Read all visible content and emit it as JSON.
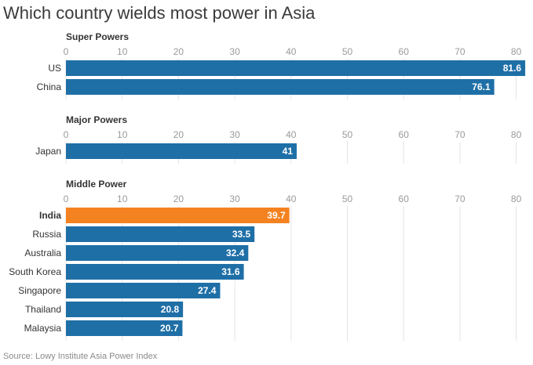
{
  "title": "Which country wields most power in Asia",
  "source": "Source: Lowy Institute Asia Power Index",
  "colors": {
    "bar": "#1f6fa7",
    "highlight": "#f58220",
    "grid": "#e4e4e4",
    "tick": "#9a9a9a",
    "text": "#333333"
  },
  "chart_data": {
    "type": "bar",
    "orientation": "horizontal",
    "xlim": [
      0,
      82
    ],
    "ticks": [
      0,
      10,
      20,
      30,
      40,
      50,
      60,
      70,
      80
    ],
    "grid": true,
    "groups": [
      {
        "label": "Super Powers",
        "categories": [
          "US",
          "China"
        ],
        "values": [
          81.6,
          76.1
        ],
        "value_labels": [
          "81.6",
          "76.1"
        ],
        "highlight": []
      },
      {
        "label": "Major Powers",
        "categories": [
          "Japan"
        ],
        "values": [
          41
        ],
        "value_labels": [
          "41"
        ],
        "highlight": []
      },
      {
        "label": "Middle Power",
        "categories": [
          "India",
          "Russia",
          "Australia",
          "South Korea",
          "Singapore",
          "Thailand",
          "Malaysia"
        ],
        "values": [
          39.7,
          33.5,
          32.4,
          31.6,
          27.4,
          20.8,
          20.7
        ],
        "value_labels": [
          "39.7",
          "33.5",
          "32.4",
          "31.6",
          "27.4",
          "20.8",
          "20.7"
        ],
        "highlight": [
          "India"
        ]
      }
    ]
  }
}
